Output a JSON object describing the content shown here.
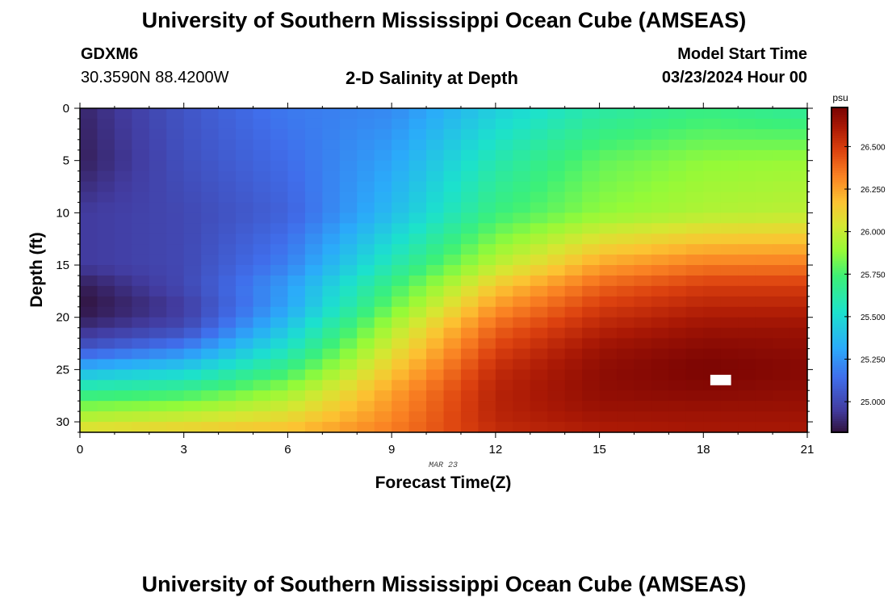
{
  "header": {
    "title": "University of Southern Mississippi Ocean Cube (AMSEAS)",
    "station_id": "GDXM6",
    "coordinates": "30.3590N  88.4200W",
    "subtitle": "2-D Salinity at Depth",
    "model_start_label": "Model Start Time",
    "model_start_value": "03/23/2024 Hour 00"
  },
  "footer": {
    "title": "University of Southern Mississippi Ocean Cube (AMSEAS)"
  },
  "chart_data": {
    "type": "heatmap",
    "title": "2-D Salinity at Depth",
    "xlabel": "Forecast Time(Z)",
    "ylabel": "Depth (ft)",
    "x_range": [
      0,
      21
    ],
    "y_range": [
      0,
      31
    ],
    "y_inverted": true,
    "x_ticks": [
      0,
      3,
      6,
      9,
      12,
      15,
      18,
      21
    ],
    "y_ticks": [
      0,
      5,
      10,
      15,
      20,
      25,
      30
    ],
    "date_label": "MAR 23",
    "grid": false,
    "colorbar": {
      "unit": "psu",
      "min": 24.82,
      "max": 26.73,
      "ticks": [
        "25.000",
        "25.250",
        "25.500",
        "25.750",
        "26.000",
        "26.250",
        "26.500"
      ],
      "placement": "right"
    },
    "missing_cell": {
      "time": [
        18.2,
        18.8
      ],
      "depth": [
        25.5,
        26.5
      ]
    },
    "salinity_field": {
      "time": [
        0,
        3,
        6,
        9,
        12,
        15,
        18,
        21
      ],
      "depth": [
        0,
        5,
        10,
        15,
        17,
        19,
        21,
        23,
        25,
        27,
        29,
        31
      ],
      "values_psu": [
        [
          24.88,
          25.05,
          25.18,
          25.22,
          25.45,
          25.62,
          25.7,
          25.65
        ],
        [
          24.86,
          25.03,
          25.14,
          25.3,
          25.6,
          25.8,
          25.88,
          25.9
        ],
        [
          24.95,
          25.0,
          25.1,
          25.38,
          25.72,
          25.88,
          25.95,
          25.98
        ],
        [
          24.95,
          25.0,
          25.2,
          25.6,
          25.98,
          26.25,
          26.35,
          26.35
        ],
        [
          24.85,
          25.0,
          25.28,
          25.72,
          26.15,
          26.4,
          26.5,
          26.5
        ],
        [
          24.82,
          24.95,
          25.3,
          25.82,
          26.28,
          26.5,
          26.58,
          26.58
        ],
        [
          24.9,
          25.0,
          25.42,
          25.95,
          26.4,
          26.58,
          26.65,
          26.65
        ],
        [
          25.05,
          25.2,
          25.55,
          26.05,
          26.48,
          26.65,
          26.7,
          26.68
        ],
        [
          25.35,
          25.45,
          25.72,
          26.15,
          26.55,
          26.68,
          26.73,
          26.7
        ],
        [
          25.65,
          25.7,
          25.9,
          26.25,
          26.58,
          26.68,
          26.7,
          26.68
        ],
        [
          25.9,
          25.95,
          26.05,
          26.3,
          26.58,
          26.65,
          26.65,
          26.65
        ],
        [
          26.1,
          26.15,
          26.2,
          26.35,
          26.55,
          26.6,
          26.62,
          26.62
        ]
      ]
    }
  }
}
